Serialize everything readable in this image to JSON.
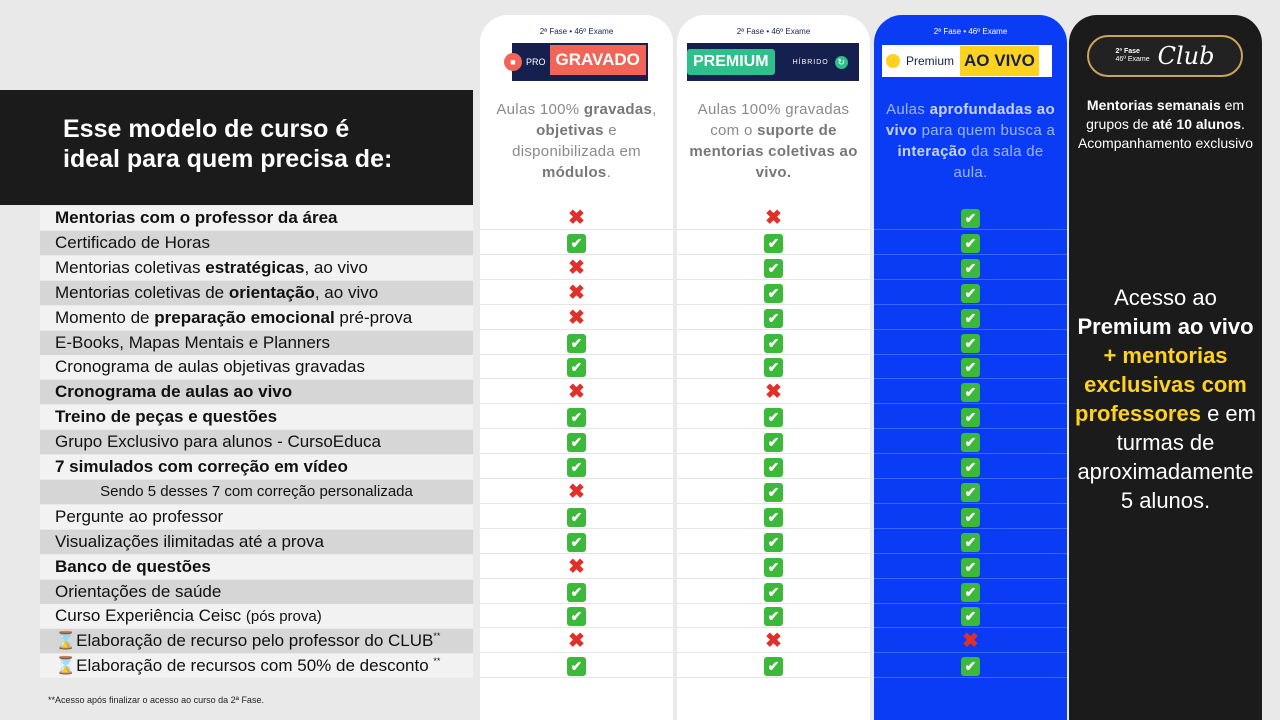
{
  "hero": {
    "line1": "Esse modelo de curso é",
    "line2": "ideal para quem precisa de:"
  },
  "columns": [
    {
      "fase": "2ª Fase • 46º Exame",
      "logo": [
        "PRO",
        "GRAVADO"
      ],
      "desc": [
        {
          "t": "Aulas 100% "
        },
        {
          "t": "gravadas",
          "b": 1
        },
        {
          "t": ", "
        },
        {
          "t": "objetivas",
          "b": 1
        },
        {
          "t": " e disponibilizada em "
        },
        {
          "t": "módulos",
          "b": 1
        },
        {
          "t": "."
        }
      ]
    },
    {
      "fase": "2ª Fase • 46º Exame",
      "logo": [
        "PREMIUM",
        "HÍBRIDO"
      ],
      "desc": [
        {
          "t": "Aulas 100% gravadas com o "
        },
        {
          "t": "suporte de mentorias coletivas ao vivo.",
          "b": 1
        }
      ]
    },
    {
      "fase": "2ª Fase • 46º Exame",
      "logo": [
        "Premium",
        "AO VIVO"
      ],
      "desc": [
        {
          "t": "Aulas "
        },
        {
          "t": "aprofundadas ao vivo",
          "b": 1
        },
        {
          "t": " para quem busca a "
        },
        {
          "t": "interação",
          "b": 1
        },
        {
          "t": " da sala de aula."
        }
      ]
    },
    {
      "fase": "",
      "logo": [
        "2ª Fase",
        "46º Exame",
        "Club"
      ],
      "desc": [
        {
          "t": "Mentorias semanais",
          "b": 1
        },
        {
          "t": " em grupos de "
        },
        {
          "t": "até 10 alunos",
          "b": 1
        },
        {
          "t": ". Acompanhamento exclusivo"
        }
      ]
    }
  ],
  "rows": [
    {
      "parts": [
        {
          "t": "Mentorias com o professor da área",
          "b": 1
        }
      ],
      "marks": [
        "x",
        "x",
        "check"
      ]
    },
    {
      "parts": [
        {
          "t": "Certificado de Horas"
        }
      ],
      "marks": [
        "check",
        "check",
        "check"
      ]
    },
    {
      "parts": [
        {
          "t": "Mentorias coletivas "
        },
        {
          "t": "estratégicas",
          "b": 1
        },
        {
          "t": ", ao vivo"
        }
      ],
      "marks": [
        "x",
        "check",
        "check"
      ]
    },
    {
      "parts": [
        {
          "t": "Mentorias coletivas de "
        },
        {
          "t": "orientação",
          "b": 1
        },
        {
          "t": ", ao vivo"
        }
      ],
      "marks": [
        "x",
        "check",
        "check"
      ]
    },
    {
      "parts": [
        {
          "t": "Momento de "
        },
        {
          "t": "preparação emocional",
          "b": 1
        },
        {
          "t": " pré-prova"
        }
      ],
      "marks": [
        "x",
        "check",
        "check"
      ]
    },
    {
      "parts": [
        {
          "t": "E-Books, Mapas Mentais e Planners"
        }
      ],
      "marks": [
        "check",
        "check",
        "check"
      ]
    },
    {
      "parts": [
        {
          "t": "Cronograma de aulas objetivas gravadas"
        }
      ],
      "marks": [
        "check",
        "check",
        "check"
      ]
    },
    {
      "parts": [
        {
          "t": "Cronograma de aulas ao vivo",
          "b": 1
        }
      ],
      "marks": [
        "x",
        "x",
        "check"
      ]
    },
    {
      "parts": [
        {
          "t": "Treino de peças e questões",
          "b": 1
        }
      ],
      "marks": [
        "check",
        "check",
        "check"
      ]
    },
    {
      "parts": [
        {
          "t": "Grupo Exclusivo para alunos - CursoEduca"
        }
      ],
      "marks": [
        "check",
        "check",
        "check"
      ]
    },
    {
      "parts": [
        {
          "t": "7 simulados com correção em vídeo",
          "b": 1
        }
      ],
      "marks": [
        "check",
        "check",
        "check"
      ]
    },
    {
      "parts": [
        {
          "t": "Sendo 5 desses 7 com correção personalizada"
        }
      ],
      "small": 1,
      "marks": [
        "x",
        "check",
        "check"
      ]
    },
    {
      "parts": [
        {
          "t": "Pergunte ao professor"
        }
      ],
      "marks": [
        "check",
        "check",
        "check"
      ]
    },
    {
      "parts": [
        {
          "t": "Visualizações ilimitadas até a prova"
        }
      ],
      "marks": [
        "check",
        "check",
        "check"
      ]
    },
    {
      "parts": [
        {
          "t": "Banco de questões",
          "b": 1
        }
      ],
      "marks": [
        "x",
        "check",
        "check"
      ]
    },
    {
      "parts": [
        {
          "t": "Orientações de saúde"
        }
      ],
      "marks": [
        "check",
        "check",
        "check"
      ]
    },
    {
      "parts": [
        {
          "t": "Curso Experiência Ceisc "
        },
        {
          "t": "(pós prova)",
          "s": 1
        }
      ],
      "marks": [
        "check",
        "check",
        "check"
      ]
    },
    {
      "parts": [
        {
          "t": "⌛Elaboração de recurso pelo professor do CLUB"
        },
        {
          "t": "**",
          "sup": 1
        }
      ],
      "marks": [
        "x",
        "x",
        "x"
      ]
    },
    {
      "parts": [
        {
          "t": "⌛Elaboração de recursos com 50% de desconto "
        },
        {
          "t": "**",
          "sup": 1
        }
      ],
      "marks": [
        "check",
        "check",
        "check"
      ]
    }
  ],
  "club_text": [
    {
      "t": "Acesso ao "
    },
    {
      "t": "Premium ao vivo",
      "b": 1
    },
    {
      "t": " + mentorias exclusivas com professores",
      "y": 1
    },
    {
      "t": " e em turmas de aproximadamente 5 alunos."
    }
  ],
  "footnote": "**Acesso após finalizar o acesso ao curso da 2ª Fase.",
  "colors": {
    "blue": "#0a3cf5",
    "black": "#1b1b1b",
    "gravado": "#f26457",
    "premium": "#2fbf8a",
    "aovivo": "#ffd21f"
  }
}
